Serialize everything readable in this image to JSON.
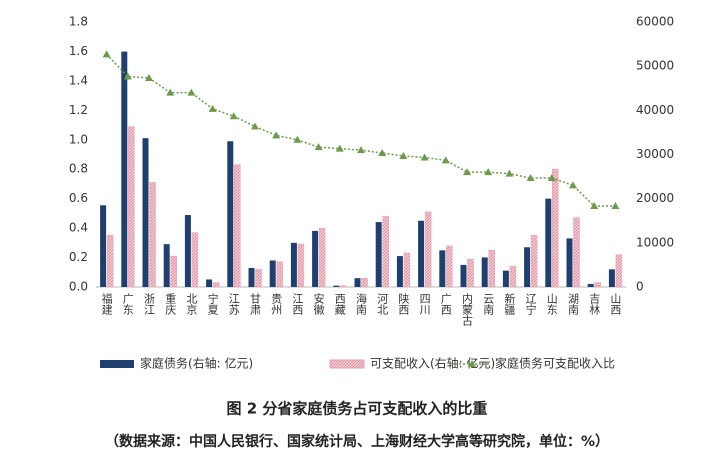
{
  "chart_data": {
    "type": "bar_line",
    "title": "图 2 分省家庭债务占可支配收入的比重",
    "source": "（数据来源：中国人民银行、国家统计局、上海财经大学高等研究院，单位：%）",
    "categories": [
      "福建",
      "广东",
      "浙江",
      "重庆",
      "北京",
      "宁夏",
      "江苏",
      "甘肃",
      "贵州",
      "江西",
      "安徽",
      "西藏",
      "海南",
      "河北",
      "陕西",
      "四川",
      "广西",
      "内蒙古",
      "云南",
      "新疆",
      "辽宁",
      "山东",
      "湖南",
      "吉林",
      "山西"
    ],
    "series": [
      {
        "name": "家庭债务(右轴: 亿元)",
        "type": "bar",
        "axis": "y2",
        "color": "#1f3f6e",
        "values": [
          18500,
          53300,
          33700,
          9700,
          16300,
          1700,
          33000,
          4300,
          6000,
          10000,
          12700,
          300,
          2000,
          14700,
          7000,
          15000,
          8300,
          5000,
          6700,
          3700,
          9000,
          20000,
          11000,
          700,
          4000
        ]
      },
      {
        "name": "可支配收入(右轴: 亿元)",
        "type": "bar",
        "axis": "y2",
        "color": "#e8a0ae",
        "values": [
          11700,
          36300,
          23700,
          7000,
          12300,
          1000,
          27700,
          4000,
          5700,
          9700,
          13300,
          300,
          2000,
          16000,
          7700,
          17000,
          9300,
          6300,
          8300,
          4700,
          11700,
          26700,
          15700,
          1000,
          7300
        ]
      },
      {
        "name": "家庭债务可支配收入比",
        "type": "line",
        "axis": "y",
        "color": "#6e9a4e",
        "values": [
          1.58,
          1.43,
          1.42,
          1.32,
          1.32,
          1.21,
          1.16,
          1.09,
          1.03,
          1.0,
          0.95,
          0.94,
          0.93,
          0.91,
          0.89,
          0.88,
          0.86,
          0.78,
          0.78,
          0.77,
          0.74,
          0.74,
          0.69,
          0.55,
          0.55
        ]
      }
    ],
    "ylim": [
      0,
      1.8
    ],
    "yticks": [
      {
        "value": 0,
        "label": "0.0"
      },
      0.2,
      0.4,
      0.6,
      0.8,
      {
        "value": 1,
        "label": "1.0"
      },
      1.2,
      1.4,
      1.6,
      1.8
    ],
    "y2lim": [
      0,
      60000
    ],
    "y2ticks": [
      0,
      10000,
      20000,
      30000,
      40000,
      50000,
      60000
    ],
    "legend": "bottom"
  }
}
